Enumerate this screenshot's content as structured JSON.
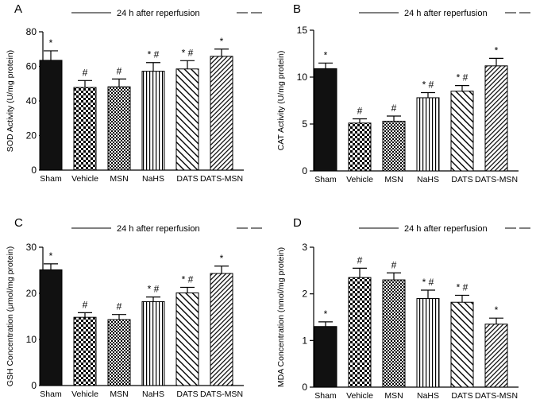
{
  "figure": {
    "header_text": "24 h after reperfusion"
  },
  "chart_data": [
    {
      "panel_label": "A",
      "type": "bar",
      "ylabel": "SOD Activity (U/mg protein)",
      "ylim": [
        0,
        80
      ],
      "yticks": [
        "0",
        "20",
        "40",
        "60",
        "80"
      ],
      "categories": [
        "Sham",
        "Vehicle",
        "MSN",
        "NaHS",
        "DATS",
        "DATS-MSN"
      ],
      "values": [
        63.5,
        47.8,
        48.2,
        57.2,
        58.5,
        65.8
      ],
      "errors": [
        5.5,
        4.0,
        4.5,
        5.0,
        4.8,
        4.2
      ],
      "annotations": [
        "*",
        "#",
        "#",
        "* #",
        "* #",
        "*"
      ]
    },
    {
      "panel_label": "B",
      "type": "bar",
      "ylabel": "CAT Activity (U/mg protein)",
      "ylim": [
        0,
        15
      ],
      "yticks": [
        "0",
        "5",
        "10",
        "15"
      ],
      "categories": [
        "Sham",
        "Vehicle",
        "MSN",
        "NaHS",
        "DATS",
        "DATS-MSN"
      ],
      "values": [
        10.9,
        5.1,
        5.3,
        7.8,
        8.5,
        11.2
      ],
      "errors": [
        0.6,
        0.45,
        0.55,
        0.55,
        0.6,
        0.8
      ],
      "annotations": [
        "*",
        "#",
        "#",
        "* #",
        "* #",
        "*"
      ]
    },
    {
      "panel_label": "C",
      "type": "bar",
      "ylabel": "GSH Concentration (μmol/mg protein)",
      "ylim": [
        0,
        30
      ],
      "yticks": [
        "0",
        "10",
        "20",
        "30"
      ],
      "categories": [
        "Sham",
        "Vehicle",
        "MSN",
        "NaHS",
        "DATS",
        "DATS-MSN"
      ],
      "values": [
        25.1,
        14.8,
        14.3,
        18.2,
        20.1,
        24.3
      ],
      "errors": [
        1.3,
        1.0,
        1.1,
        1.0,
        1.2,
        1.6
      ],
      "annotations": [
        "*",
        "#",
        "#",
        "* #",
        "* #",
        "*"
      ]
    },
    {
      "panel_label": "D",
      "type": "bar",
      "ylabel": "MDA Concentration (nmol/mg protein)",
      "ylim": [
        0,
        3
      ],
      "yticks": [
        "0",
        "1",
        "2",
        "3"
      ],
      "categories": [
        "Sham",
        "Vehicle",
        "MSN",
        "NaHS",
        "DATS",
        "DATS-MSN"
      ],
      "values": [
        1.3,
        2.35,
        2.3,
        1.9,
        1.82,
        1.35
      ],
      "errors": [
        0.1,
        0.2,
        0.15,
        0.18,
        0.15,
        0.13
      ],
      "annotations": [
        "*",
        "#",
        "#",
        "* #",
        "* #",
        "*"
      ]
    }
  ],
  "bar_patterns": [
    "solid",
    "checker",
    "checker-dense",
    "vertical",
    "diagonal",
    "diagonal-dense"
  ]
}
